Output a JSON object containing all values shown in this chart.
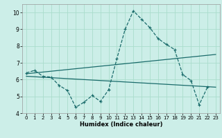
{
  "xlabel": "Humidex (Indice chaleur)",
  "bg_color": "#cceee8",
  "grid_color": "#aaddcc",
  "line_color": "#1a6b6b",
  "xlim": [
    -0.5,
    23.5
  ],
  "ylim": [
    4,
    10.5
  ],
  "yticks": [
    4,
    5,
    6,
    7,
    8,
    9,
    10
  ],
  "xticks": [
    0,
    1,
    2,
    3,
    4,
    5,
    6,
    7,
    8,
    9,
    10,
    11,
    12,
    13,
    14,
    15,
    16,
    17,
    18,
    19,
    20,
    21,
    22,
    23
  ],
  "line1_x": [
    0,
    1,
    2,
    3,
    4,
    5,
    6,
    7,
    8,
    9,
    10,
    11,
    12,
    13,
    14,
    15,
    16,
    17,
    18,
    19,
    20,
    21,
    22
  ],
  "line1_y": [
    6.4,
    6.55,
    6.2,
    6.15,
    5.65,
    5.35,
    4.35,
    4.65,
    5.05,
    4.7,
    5.4,
    7.25,
    9.0,
    10.1,
    9.6,
    9.1,
    8.45,
    8.1,
    7.8,
    6.3,
    5.95,
    4.5,
    5.55
  ],
  "line2_x": [
    0,
    23
  ],
  "line2_y": [
    6.35,
    7.5
  ],
  "line3_x": [
    0,
    23
  ],
  "line3_y": [
    6.2,
    5.55
  ]
}
